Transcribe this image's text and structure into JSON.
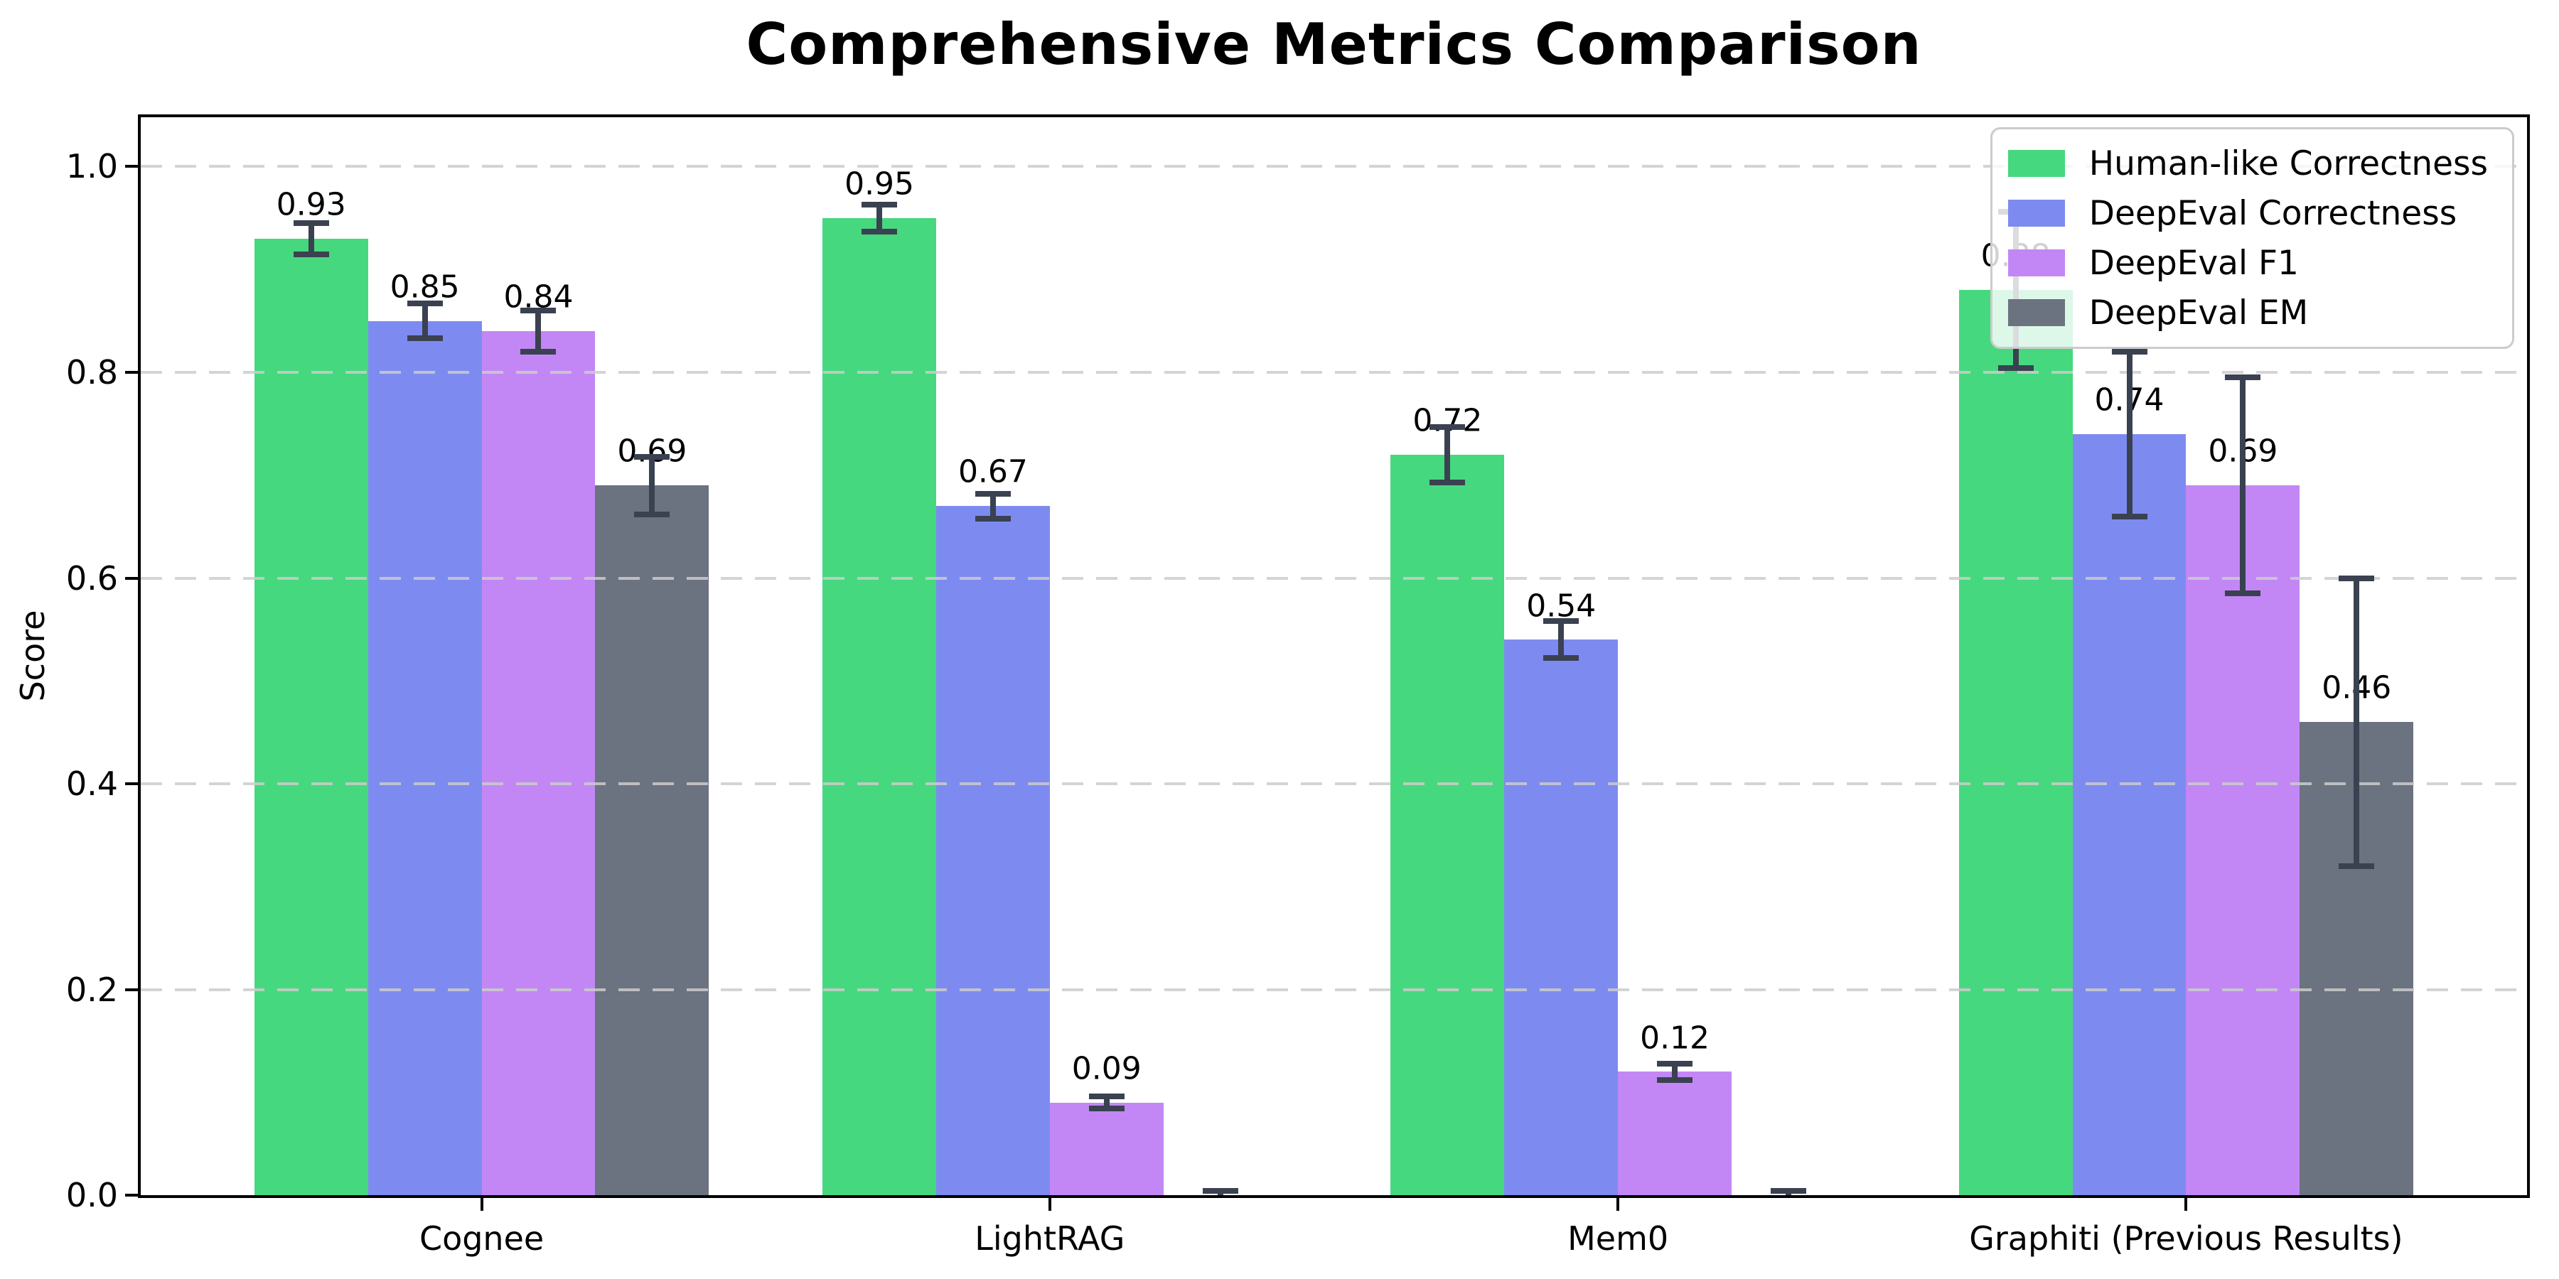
{
  "chart_data": {
    "type": "bar",
    "title": "Comprehensive Metrics Comparison",
    "xlabel": "",
    "ylabel": "Score",
    "categories": [
      "Cognee",
      "LightRAG",
      "Mem0",
      "Graphiti (Previous Results)"
    ],
    "series": [
      {
        "name": "Human-like Correctness",
        "color": "#46d87e",
        "values": [
          0.93,
          0.95,
          0.72,
          0.88
        ],
        "errors": [
          0.015,
          0.013,
          0.027,
          0.076
        ],
        "labels": [
          "0.93",
          "0.95",
          "0.72",
          "0.88"
        ]
      },
      {
        "name": "DeepEval Correctness",
        "color": "#7d8bf0",
        "values": [
          0.85,
          0.67,
          0.54,
          0.74
        ],
        "errors": [
          0.017,
          0.012,
          0.018,
          0.08
        ],
        "labels": [
          "0.85",
          "0.67",
          "0.54",
          "0.74"
        ]
      },
      {
        "name": "DeepEval F1",
        "color": "#c287f4",
        "values": [
          0.84,
          0.09,
          0.12,
          0.69
        ],
        "errors": [
          0.02,
          0.006,
          0.008,
          0.105
        ],
        "labels": [
          "0.84",
          "0.09",
          "0.12",
          "0.69"
        ]
      },
      {
        "name": "DeepEval EM",
        "color": "#6b7280",
        "values": [
          0.69,
          0.0,
          0.0,
          0.46
        ],
        "errors": [
          0.028,
          0.004,
          0.004,
          0.14
        ],
        "labels": [
          "0.69",
          null,
          null,
          "0.46"
        ]
      }
    ],
    "y_ticks": [
      "0.0",
      "0.2",
      "0.4",
      "0.6",
      "0.8",
      "1.0"
    ],
    "ylim": [
      0,
      1.048
    ],
    "xlim": [
      -0.6,
      3.6
    ],
    "bar_width_units": 0.2,
    "bar_offsets_units": [
      -0.3,
      -0.1,
      0.1,
      0.3
    ],
    "grid": "horizontal dashed, drawn over bars",
    "legend_position": "upper right",
    "error_bar_color": "#3a4150"
  }
}
